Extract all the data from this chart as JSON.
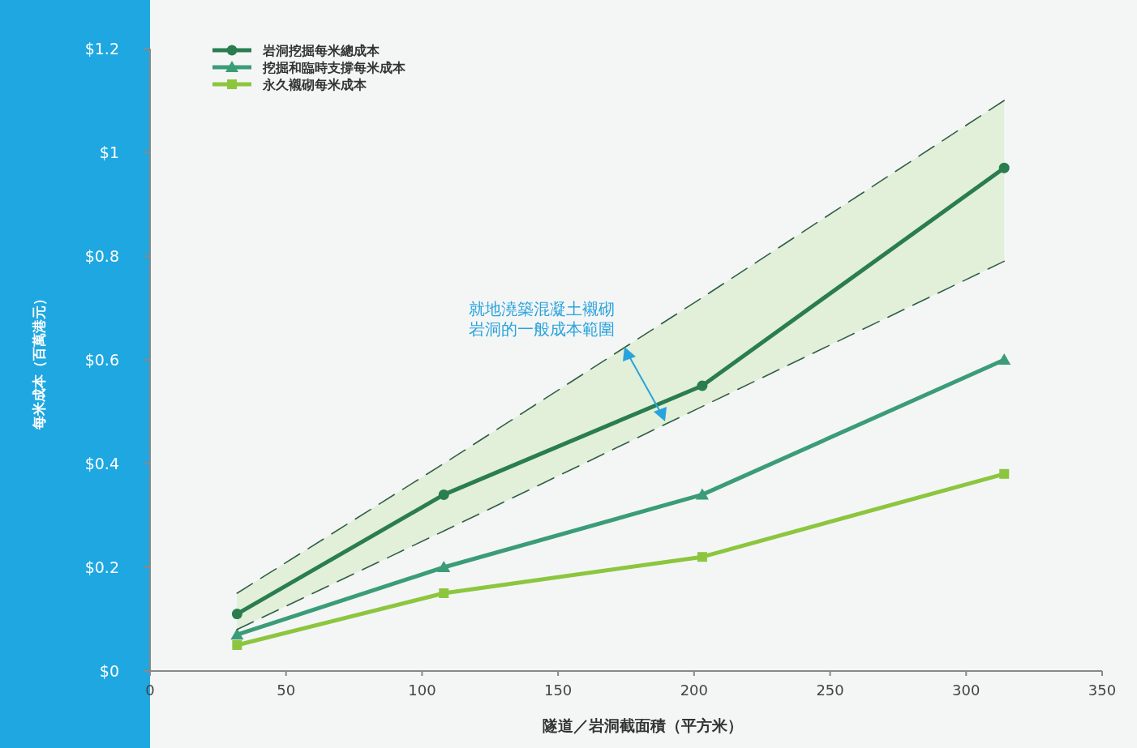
{
  "chart_data": {
    "type": "line",
    "xlabel": "隧道／岩洞截面積（平方米）",
    "ylabel": "每米成本（百萬港元）",
    "xlim": [
      0,
      350
    ],
    "xticks": [
      0,
      50,
      100,
      150,
      200,
      250,
      300,
      350
    ],
    "ylim": [
      0,
      1.2
    ],
    "yticks": [
      {
        "value": 0,
        "label": "$0"
      },
      {
        "value": 0.2,
        "label": "$0.2"
      },
      {
        "value": 0.4,
        "label": "$0.4"
      },
      {
        "value": 0.6,
        "label": "$0.6"
      },
      {
        "value": 0.8,
        "label": "$0.8"
      },
      {
        "value": 1,
        "label": "$1"
      },
      {
        "value": 1.2,
        "label": "$1.2"
      }
    ],
    "x": [
      32,
      108,
      203,
      314
    ],
    "series": [
      {
        "name": "岩洞挖掘每米總成本",
        "color": "#2a7d4f",
        "marker": "circle",
        "values": [
          0.11,
          0.34,
          0.55,
          0.97
        ],
        "lower": [
          0.08,
          0.27,
          0.51,
          0.79
        ],
        "upper": [
          0.15,
          0.4,
          0.72,
          1.1
        ]
      },
      {
        "name": "挖掘和臨時支撐每米成本",
        "color": "#3b9c78",
        "marker": "triangle",
        "values": [
          0.07,
          0.2,
          0.34,
          0.6
        ]
      },
      {
        "name": "永久襯砌每米成本",
        "color": "#8cc63f",
        "marker": "square",
        "values": [
          0.05,
          0.15,
          0.22,
          0.38
        ]
      },
      {
        "color": "#2f5f45",
        "marker": "none",
        "line_style": "dashed",
        "values": [
          0.15,
          0.4,
          0.72,
          1.1
        ]
      },
      {
        "color": "#2f5f45",
        "marker": "none",
        "line_style": "dashed",
        "values": [
          0.08,
          0.27,
          0.51,
          0.79
        ]
      }
    ],
    "annotations": [
      "就地澆築混凝土襯砌",
      "岩洞的一般成本範圍"
    ],
    "legend": "top left",
    "grid": false
  }
}
